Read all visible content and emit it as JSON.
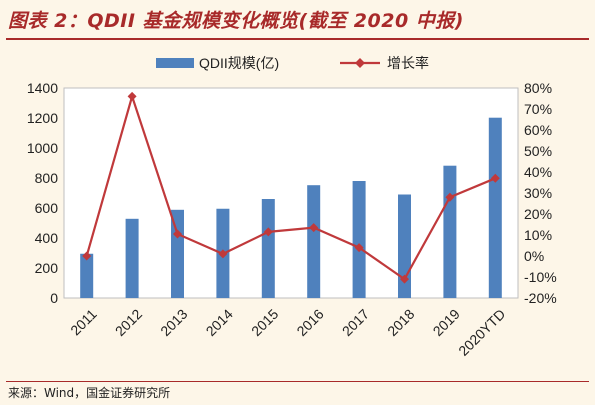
{
  "figure_title": "图表 2：QDII 基金规模变化概览(截至 2020 中报)",
  "source": "来源：Wind，国金证券研究所",
  "colors": {
    "bar": "#4f81bd",
    "line": "#c0393b",
    "title": "#a82a2a",
    "background": "#fdf6e8"
  },
  "chart_data": {
    "type": "bar",
    "categories": [
      "2011",
      "2012",
      "2013",
      "2014",
      "2015",
      "2016",
      "2017",
      "2018",
      "2019",
      "2020YTD"
    ],
    "series": [
      {
        "name": "QDII规模(亿)",
        "type": "bar",
        "axis": "left",
        "values": [
          295,
          528,
          588,
          595,
          660,
          752,
          780,
          690,
          882,
          1202
        ]
      },
      {
        "name": "增长率",
        "type": "line",
        "axis": "right",
        "values": [
          0,
          76,
          10.5,
          1,
          11.5,
          13.5,
          4,
          -11,
          28,
          37
        ]
      }
    ],
    "y_left": {
      "lim": [
        0,
        1400
      ],
      "ticks": [
        "0",
        "200",
        "400",
        "600",
        "800",
        "1000",
        "1200",
        "1400"
      ]
    },
    "y_right": {
      "lim": [
        -20,
        80
      ],
      "ticks": [
        "-20%",
        "-10%",
        "0%",
        "10%",
        "20%",
        "30%",
        "40%",
        "50%",
        "60%",
        "70%",
        "80%"
      ]
    },
    "grid": false,
    "legend_position": "top"
  }
}
